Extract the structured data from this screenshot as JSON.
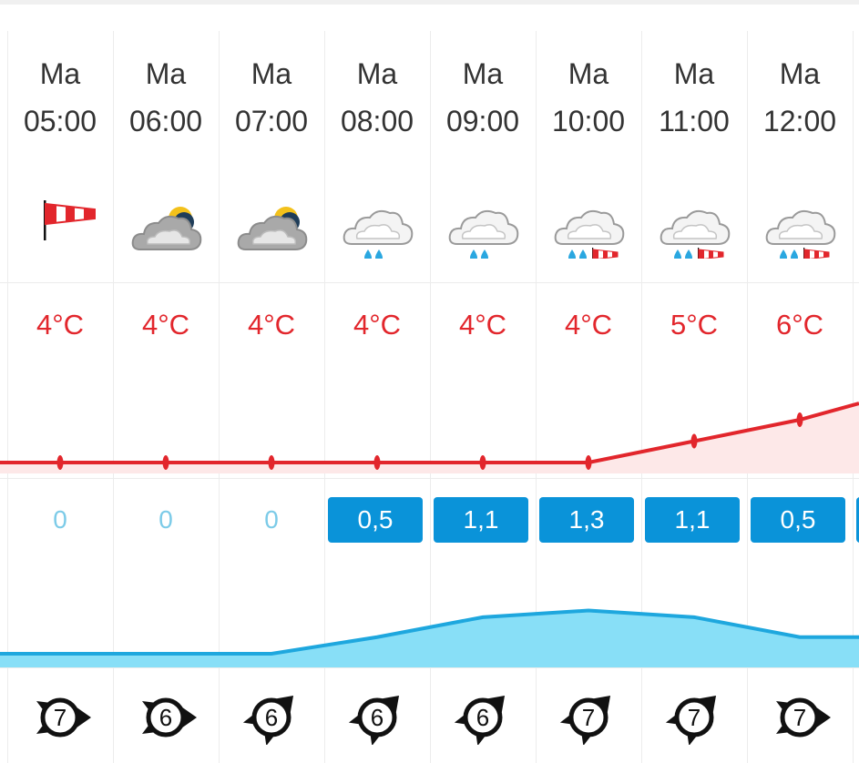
{
  "hours": [
    {
      "day": "Ma",
      "time": "05:00",
      "icon": "windsock-icon",
      "temp": "4°C",
      "temp_value": 4,
      "precip": "0",
      "precip_value": 0,
      "wind": "7",
      "wind_dir": "east"
    },
    {
      "day": "Ma",
      "time": "06:00",
      "icon": "partly-cloudy-night-icon",
      "temp": "4°C",
      "temp_value": 4,
      "precip": "0",
      "precip_value": 0,
      "wind": "6",
      "wind_dir": "east"
    },
    {
      "day": "Ma",
      "time": "07:00",
      "icon": "partly-cloudy-night-icon",
      "temp": "4°C",
      "temp_value": 4,
      "precip": "0",
      "precip_value": 0,
      "wind": "6",
      "wind_dir": "northeast"
    },
    {
      "day": "Ma",
      "time": "08:00",
      "icon": "rain-icon",
      "temp": "4°C",
      "temp_value": 4,
      "precip": "0,5",
      "precip_value": 0.5,
      "wind": "6",
      "wind_dir": "northeast"
    },
    {
      "day": "Ma",
      "time": "09:00",
      "icon": "rain-icon",
      "temp": "4°C",
      "temp_value": 4,
      "precip": "1,1",
      "precip_value": 1.1,
      "wind": "6",
      "wind_dir": "northeast"
    },
    {
      "day": "Ma",
      "time": "10:00",
      "icon": "rain-wind-icon",
      "temp": "4°C",
      "temp_value": 4,
      "precip": "1,3",
      "precip_value": 1.3,
      "wind": "7",
      "wind_dir": "northeast"
    },
    {
      "day": "Ma",
      "time": "11:00",
      "icon": "rain-wind-icon",
      "temp": "5°C",
      "temp_value": 5,
      "precip": "1,1",
      "precip_value": 1.1,
      "wind": "7",
      "wind_dir": "northeast"
    },
    {
      "day": "Ma",
      "time": "12:00",
      "icon": "rain-wind-icon",
      "temp": "6°C",
      "temp_value": 6,
      "precip": "0,5",
      "precip_value": 0.5,
      "wind": "7",
      "wind_dir": "east"
    }
  ],
  "colors": {
    "temperature": "#e2262c",
    "temperature_fill": "#fde8e8",
    "precipitation_badge": "#0a93d9",
    "precipitation_zero": "#7ccbe8",
    "precipitation_fill": "#88dff7",
    "precipitation_line": "#1ea7de"
  }
}
